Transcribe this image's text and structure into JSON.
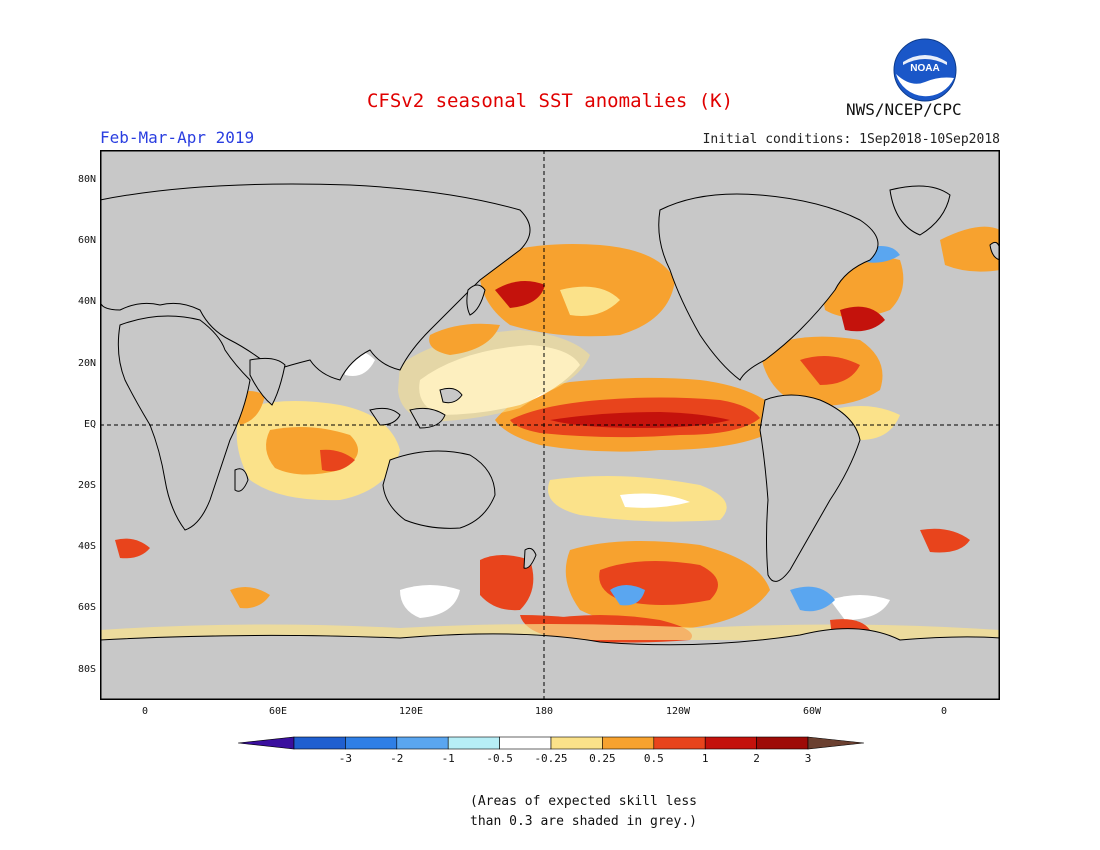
{
  "title": "CFSv2 seasonal SST anomalies (K)",
  "season": "Feb-Mar-Apr 2019",
  "initial_conditions": "Initial conditions: 1Sep2018-10Sep2018",
  "agency": "NWS/NCEP/CPC",
  "logo_text": "NOAA",
  "lat_labels": [
    "80N",
    "60N",
    "40N",
    "20N",
    "EQ",
    "20S",
    "40S",
    "60S",
    "80S"
  ],
  "lon_labels": [
    "0",
    "60E",
    "120E",
    "180",
    "120W",
    "60W",
    "0"
  ],
  "colorbar": {
    "labels": [
      "-3",
      "-2",
      "-1",
      "-0.5",
      "-0.25",
      "0.25",
      "0.5",
      "1",
      "2",
      "3"
    ],
    "colors": [
      "#3a0f9e",
      "#1f5fd0",
      "#2f7fe6",
      "#5aa6f0",
      "#b7eef6",
      "#ffffff",
      "#fbe28a",
      "#f7a22f",
      "#e8441c",
      "#c4120c",
      "#9e0b07",
      "#6b4030"
    ]
  },
  "colors": {
    "title": "#e00000",
    "season": "#2a3ee0",
    "land": "#c8c8c8",
    "grey_skill": "#c8c8c8"
  },
  "note": {
    "line1": "(Areas of expected skill less",
    "line2": "than 0.3 are shaded in grey.)"
  }
}
